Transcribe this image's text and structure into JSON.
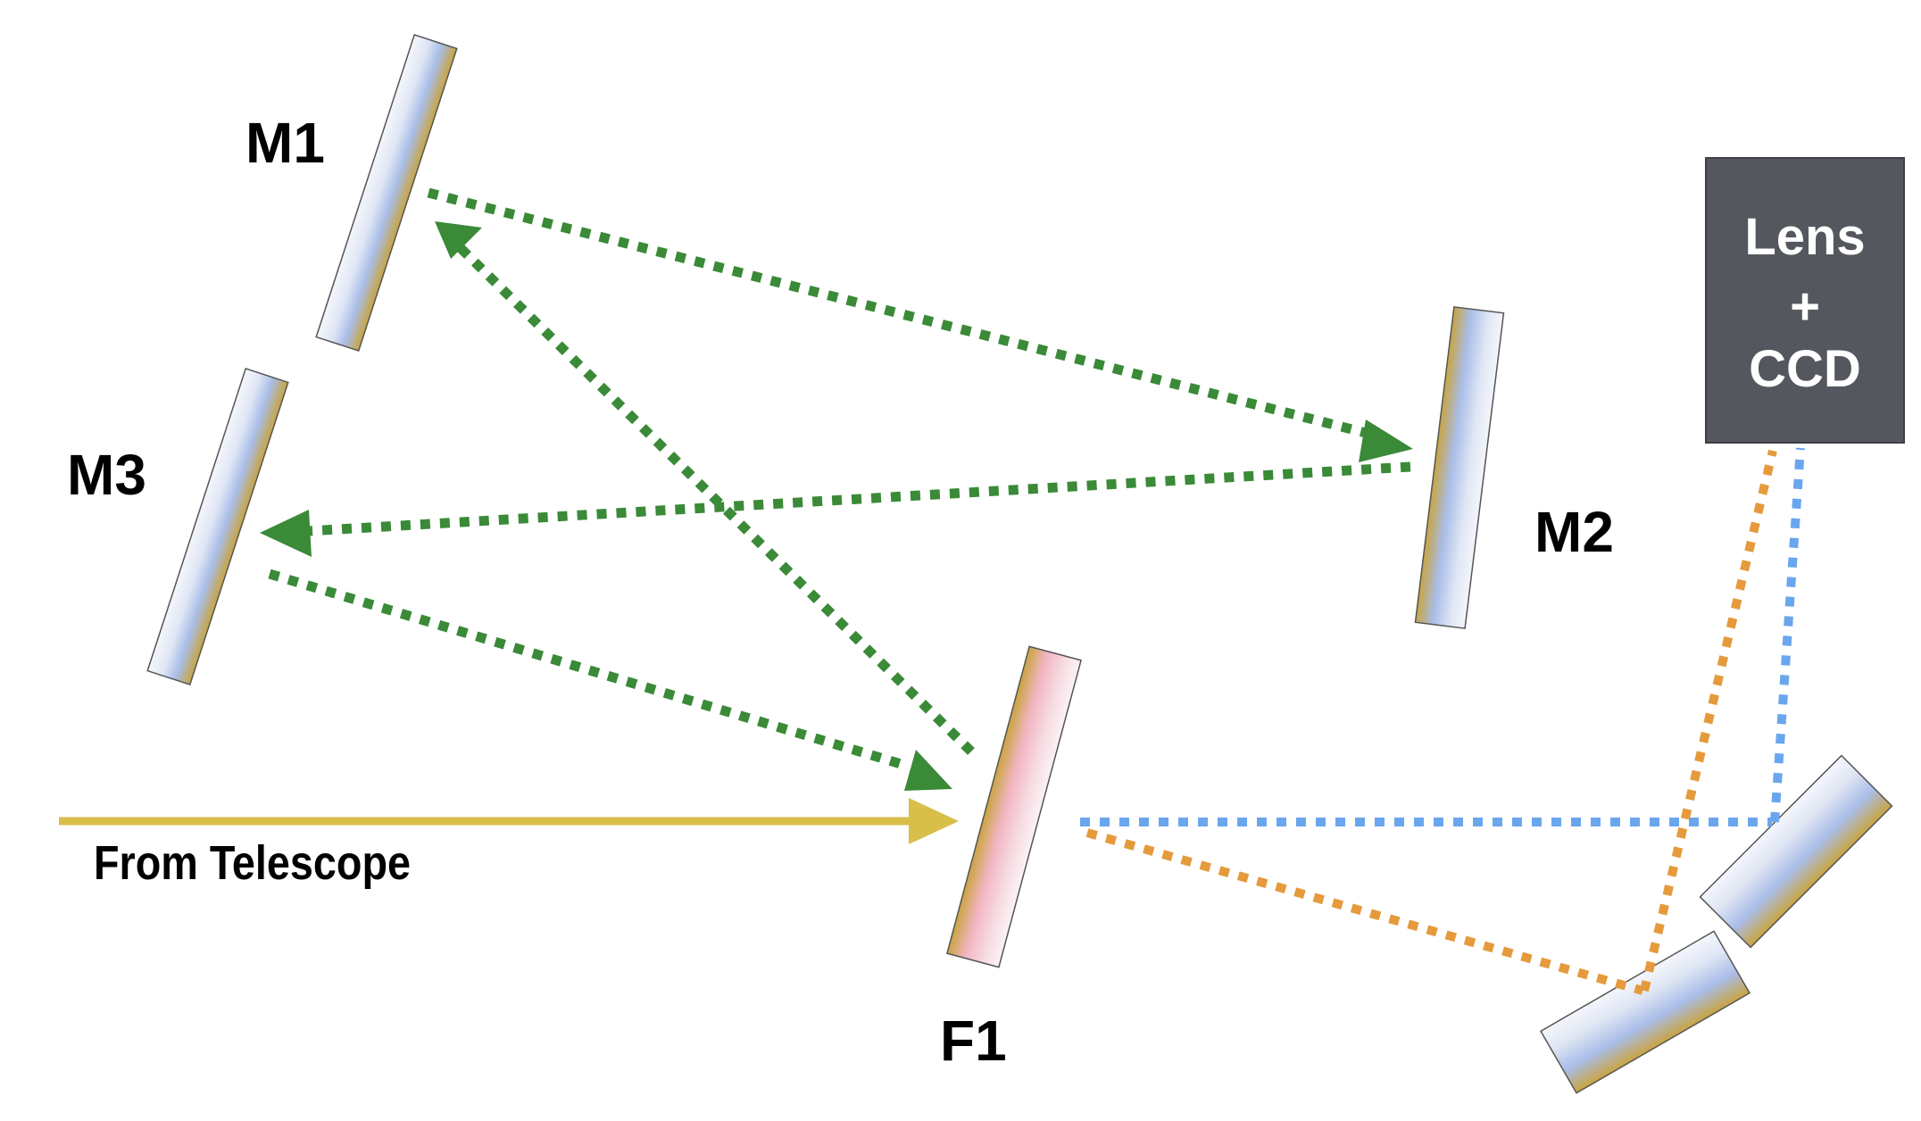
{
  "labels": {
    "m1": "M1",
    "m2": "M2",
    "m3": "M3",
    "f1": "F1",
    "source": "From Telescope"
  },
  "detector": {
    "line1": "Lens",
    "line2": "+",
    "line3": "CCD"
  },
  "colors": {
    "green_beam": "#3a8a38",
    "yellow_beam": "#d8bf4a",
    "blue_beam": "#6aa6ee",
    "orange_beam": "#e59a3c",
    "mirror_gold": "#c8a84a",
    "mirror_blue": "#b9c8ec",
    "filter_pink": "#f2b5c2",
    "detector_box": "#54585e"
  }
}
